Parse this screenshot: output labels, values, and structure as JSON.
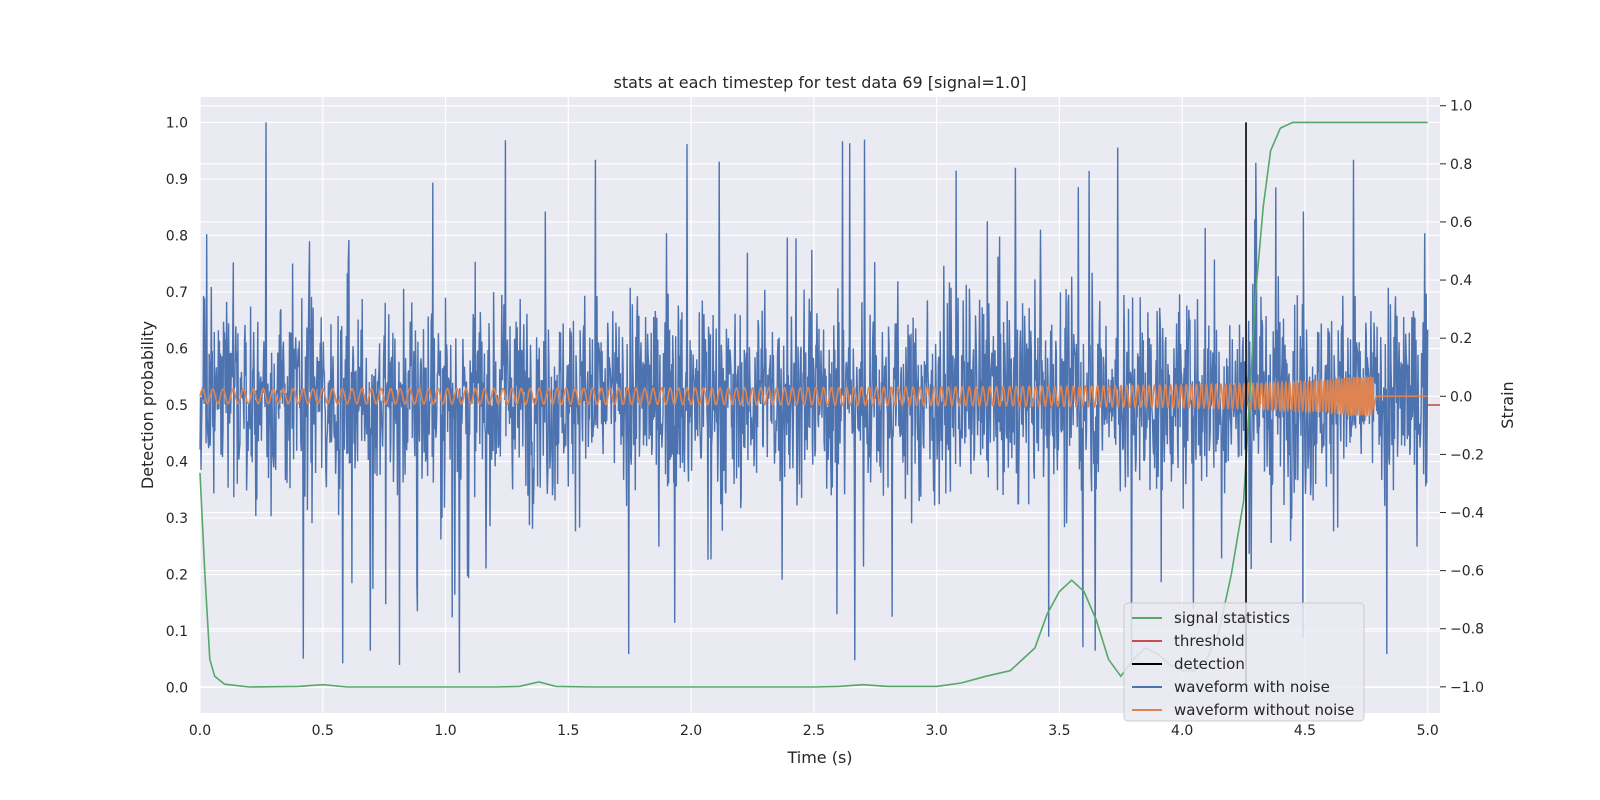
{
  "chart_data": {
    "type": "line",
    "title": "stats at each timestep for test data 69 [signal=1.0]",
    "xlabel": "Time (s)",
    "ylabel": "Detection probability",
    "ylabel_right": "Strain",
    "xlim": [
      0.0,
      5.05
    ],
    "ylim": [
      -0.045,
      1.045
    ],
    "ylim_right": [
      -1.09,
      1.03
    ],
    "x_ticks": [
      "0.0",
      "0.5",
      "1.0",
      "1.5",
      "2.0",
      "2.5",
      "3.0",
      "3.5",
      "4.0",
      "4.5",
      "5.0"
    ],
    "y_ticks": [
      "0.0",
      "0.1",
      "0.2",
      "0.3",
      "0.4",
      "0.5",
      "0.6",
      "0.7",
      "0.8",
      "0.9",
      "1.0"
    ],
    "y_ticks_right": [
      "−1.0",
      "−0.8",
      "−0.6",
      "−0.4",
      "−0.2",
      "0.0",
      "0.2",
      "0.4",
      "0.6",
      "0.8",
      "1.0"
    ],
    "grid": true,
    "legend_position": "lower-right",
    "colors": {
      "signal_statistics": "#55a868",
      "threshold": "#c44e52",
      "detection": "#000000",
      "waveform_with_noise": "#4c72b0",
      "waveform_without_noise": "#dd8452",
      "axes_bg": "#eaeaf2"
    },
    "series": [
      {
        "name": "signal statistics",
        "axis": "left",
        "x": [
          0.0,
          0.02,
          0.04,
          0.06,
          0.1,
          0.2,
          0.4,
          0.5,
          0.6,
          0.8,
          1.0,
          1.2,
          1.3,
          1.38,
          1.45,
          1.6,
          2.0,
          2.5,
          2.6,
          2.7,
          2.8,
          3.0,
          3.1,
          3.2,
          3.3,
          3.4,
          3.45,
          3.5,
          3.55,
          3.6,
          3.65,
          3.7,
          3.75,
          3.8,
          3.85,
          3.9,
          3.95,
          4.0,
          4.05,
          4.1,
          4.15,
          4.2,
          4.25,
          4.28,
          4.3,
          4.33,
          4.36,
          4.4,
          4.45,
          5.0
        ],
        "values": [
          0.38,
          0.2,
          0.05,
          0.02,
          0.006,
          0.001,
          0.002,
          0.005,
          0.001,
          0.001,
          0.001,
          0.001,
          0.002,
          0.01,
          0.002,
          0.001,
          0.001,
          0.001,
          0.002,
          0.005,
          0.002,
          0.002,
          0.008,
          0.02,
          0.03,
          0.07,
          0.13,
          0.17,
          0.19,
          0.17,
          0.12,
          0.05,
          0.02,
          0.05,
          0.07,
          0.06,
          0.04,
          0.03,
          0.03,
          0.05,
          0.1,
          0.2,
          0.33,
          0.55,
          0.7,
          0.85,
          0.95,
          0.99,
          1.0,
          1.0
        ]
      },
      {
        "name": "threshold",
        "axis": "left",
        "x": [
          5.0,
          5.05
        ],
        "values": [
          0.5,
          0.5
        ]
      },
      {
        "name": "detection",
        "axis": "left",
        "x": [
          4.26,
          4.26
        ],
        "values": [
          0.0,
          1.0
        ]
      },
      {
        "name": "waveform with noise",
        "axis": "right",
        "noise_amplitude": 0.38,
        "noise_peak": 0.96,
        "x_range": [
          0.0,
          5.0
        ]
      },
      {
        "name": "waveform without noise",
        "axis": "right",
        "x_range": [
          0.0,
          4.78
        ],
        "start_amplitude": 0.025,
        "end_amplitude": 0.33,
        "start_frequency_hz": 24,
        "end_frequency_hz": 180,
        "merger_time": 4.78
      }
    ]
  }
}
